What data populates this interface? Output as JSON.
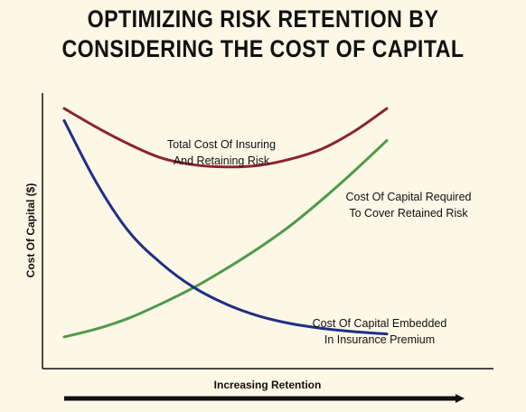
{
  "chart_data": {
    "type": "line",
    "title_lines": [
      "OPTIMIZING RISK RETENTION BY",
      "CONSIDERING THE COST OF CAPITAL"
    ],
    "xlabel": "Increasing Retention",
    "ylabel": "Cost Of Capital ($)",
    "xlim": [
      0,
      10
    ],
    "ylim": [
      0,
      10
    ],
    "grid": false,
    "legend": "none",
    "series": [
      {
        "key": "total",
        "label_lines": [
          "Total Cost Of Insuring",
          "And Retaining Risk"
        ],
        "color": "#8b2332",
        "x": [
          0,
          1,
          2,
          3,
          4,
          5,
          6,
          7,
          8,
          9,
          10
        ],
        "values": [
          9.44,
          8.76,
          8.15,
          7.65,
          7.4,
          7.32,
          7.37,
          7.6,
          7.98,
          8.62,
          9.44
        ]
      },
      {
        "key": "retained",
        "label_lines": [
          "Cost Of Capital Required",
          "To Cover Retained Risk"
        ],
        "color": "#4e9a4a",
        "x": [
          0,
          1,
          2,
          3,
          4,
          5,
          6,
          7,
          8,
          9,
          10
        ],
        "values": [
          1.15,
          1.44,
          1.83,
          2.35,
          2.93,
          3.61,
          4.35,
          5.18,
          6.14,
          7.18,
          8.28
        ]
      },
      {
        "key": "embedded",
        "label_lines": [
          "Cost Of Capital Embedded",
          "In Insurance Premium"
        ],
        "color": "#1f2f86",
        "x": [
          0,
          1,
          2,
          3,
          4,
          5,
          6,
          7,
          8,
          9,
          10
        ],
        "values": [
          9.0,
          6.75,
          4.98,
          3.83,
          2.96,
          2.35,
          1.92,
          1.64,
          1.46,
          1.34,
          1.26
        ]
      }
    ]
  }
}
